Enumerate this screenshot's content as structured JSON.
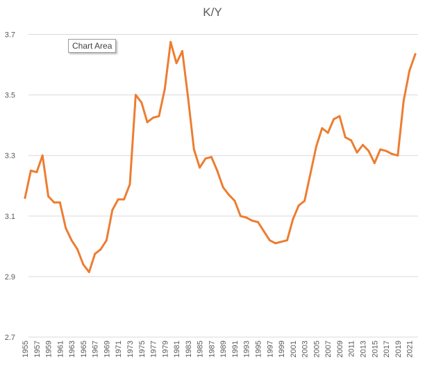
{
  "tooltip": "Chart Area",
  "colors": {
    "series": "#ED7D31",
    "grid": "#D9D9D9",
    "text": "#595959"
  },
  "chart_data": {
    "type": "line",
    "title": "K/Y",
    "xlabel": "",
    "ylabel": "",
    "ylim": [
      2.7,
      3.8
    ],
    "yticks": [
      2.7,
      2.9,
      3.1,
      3.3,
      3.5,
      3.7
    ],
    "x": [
      1955,
      1956,
      1957,
      1958,
      1959,
      1960,
      1961,
      1962,
      1963,
      1964,
      1965,
      1966,
      1967,
      1968,
      1969,
      1970,
      1971,
      1972,
      1973,
      1974,
      1975,
      1976,
      1977,
      1978,
      1979,
      1980,
      1981,
      1982,
      1983,
      1984,
      1985,
      1986,
      1987,
      1988,
      1989,
      1990,
      1991,
      1992,
      1993,
      1994,
      1995,
      1996,
      1997,
      1998,
      1999,
      2000,
      2001,
      2002,
      2003,
      2004,
      2005,
      2006,
      2007,
      2008,
      2009,
      2010,
      2011,
      2012,
      2013,
      2014,
      2015,
      2016,
      2017,
      2018,
      2019,
      2020,
      2021,
      2022
    ],
    "xtick_labels": [
      "1955",
      "1957",
      "1959",
      "1961",
      "1963",
      "1965",
      "1967",
      "1969",
      "1971",
      "1973",
      "1975",
      "1977",
      "1979",
      "1981",
      "1983",
      "1985",
      "1987",
      "1989",
      "1991",
      "1993",
      "1995",
      "1997",
      "1999",
      "2001",
      "2003",
      "2005",
      "2007",
      "2009",
      "2011",
      "2013",
      "2015",
      "2017",
      "2019",
      "2021"
    ],
    "grid": true,
    "legend": "none",
    "series": [
      {
        "values": [
          3.16,
          3.25,
          3.245,
          3.3,
          3.165,
          3.145,
          3.145,
          3.06,
          3.02,
          2.99,
          2.94,
          2.915,
          2.975,
          2.99,
          3.02,
          3.12,
          3.155,
          3.155,
          3.205,
          3.5,
          3.475,
          3.41,
          3.425,
          3.43,
          3.52,
          3.675,
          3.605,
          3.645,
          3.49,
          3.32,
          3.26,
          3.29,
          3.295,
          3.25,
          3.195,
          3.17,
          3.15,
          3.1,
          3.095,
          3.085,
          3.08,
          3.05,
          3.02,
          3.01,
          3.015,
          3.02,
          3.09,
          3.135,
          3.15,
          3.24,
          3.33,
          3.39,
          3.375,
          3.42,
          3.43,
          3.36,
          3.35,
          3.31,
          3.335,
          3.315,
          3.275,
          3.32,
          3.315,
          3.305,
          3.3,
          3.48,
          3.58,
          3.635
        ]
      }
    ]
  }
}
